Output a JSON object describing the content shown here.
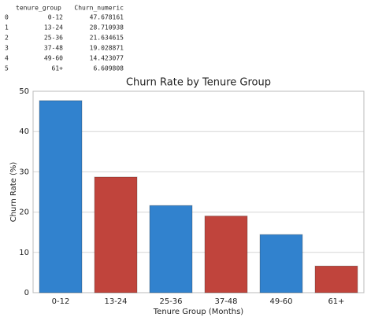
{
  "dataframe": {
    "columns": [
      "tenure_group",
      "Churn_numeric"
    ],
    "index": [
      0,
      1,
      2,
      3,
      4,
      5
    ],
    "rows": [
      [
        "0-12",
        "47.678161"
      ],
      [
        "13-24",
        "28.710938"
      ],
      [
        "25-36",
        "21.634615"
      ],
      [
        "37-48",
        "19.028871"
      ],
      [
        "49-60",
        "14.423077"
      ],
      [
        "61+",
        "6.609808"
      ]
    ]
  },
  "chart_data": {
    "type": "bar",
    "title": "Churn Rate by Tenure Group",
    "x_label": "Tenure Group (Months)",
    "y_label": "Churn Rate (%)",
    "categories": [
      "0-12",
      "13-24",
      "25-36",
      "37-48",
      "49-60",
      "61+"
    ],
    "values": [
      47.678161,
      28.710938,
      21.634615,
      19.028871,
      14.423077,
      6.609808
    ],
    "colors": [
      "#3182ce",
      "#c0443c",
      "#3182ce",
      "#c0443c",
      "#3182ce",
      "#c0443c"
    ],
    "ylim": [
      0,
      50
    ],
    "yticks": [
      0,
      10,
      20,
      30,
      40,
      50
    ],
    "grid": true
  }
}
